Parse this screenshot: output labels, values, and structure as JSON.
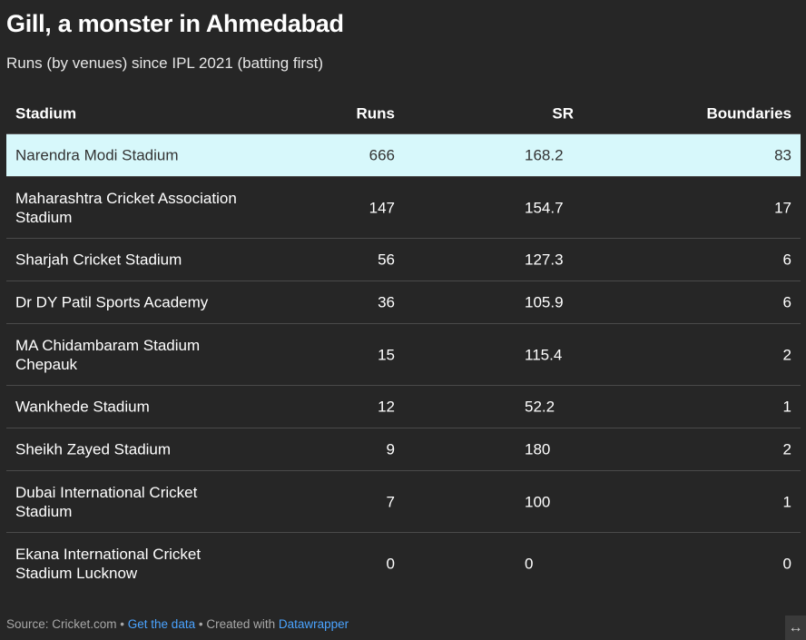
{
  "title": "Gill, a monster in Ahmedabad",
  "subtitle": "Runs (by venues) since IPL 2021 (batting first)",
  "columns": {
    "stadium": "Stadium",
    "runs": "Runs",
    "sr": "SR",
    "boundaries": "Boundaries"
  },
  "colors": {
    "background": "#262626",
    "highlight_row": "#d7f8fb",
    "link": "#4aa3ff"
  },
  "chart_data": {
    "type": "table",
    "title": "Gill, a monster in Ahmedabad",
    "subtitle": "Runs (by venues) since IPL 2021 (batting first)",
    "columns": [
      "Stadium",
      "Runs",
      "SR",
      "Boundaries"
    ],
    "rows": [
      {
        "stadium": "Narendra Modi Stadium",
        "runs": "666",
        "sr": "168.2",
        "boundaries": "83",
        "highlight": true
      },
      {
        "stadium": "Maharashtra Cricket Association Stadium",
        "runs": "147",
        "sr": "154.7",
        "boundaries": "17",
        "highlight": false
      },
      {
        "stadium": "Sharjah Cricket Stadium",
        "runs": "56",
        "sr": "127.3",
        "boundaries": "6",
        "highlight": false
      },
      {
        "stadium": "Dr DY Patil Sports Academy",
        "runs": "36",
        "sr": "105.9",
        "boundaries": "6",
        "highlight": false
      },
      {
        "stadium": "MA Chidambaram Stadium Chepauk",
        "runs": "15",
        "sr": "115.4",
        "boundaries": "2",
        "highlight": false
      },
      {
        "stadium": "Wankhede Stadium",
        "runs": "12",
        "sr": "52.2",
        "boundaries": "1",
        "highlight": false
      },
      {
        "stadium": "Sheikh Zayed Stadium",
        "runs": "9",
        "sr": "180",
        "boundaries": "2",
        "highlight": false
      },
      {
        "stadium": "Dubai International Cricket Stadium",
        "runs": "7",
        "sr": "100",
        "boundaries": "1",
        "highlight": false
      },
      {
        "stadium": "Ekana International Cricket Stadium Lucknow",
        "runs": "0",
        "sr": "0",
        "boundaries": "0",
        "highlight": false
      }
    ]
  },
  "footer": {
    "source": "Source: Cricket.com",
    "sep1": " • ",
    "get_data": "Get the data",
    "sep2": " • Created with ",
    "datawrapper": "Datawrapper"
  },
  "expand_icon": "↔"
}
